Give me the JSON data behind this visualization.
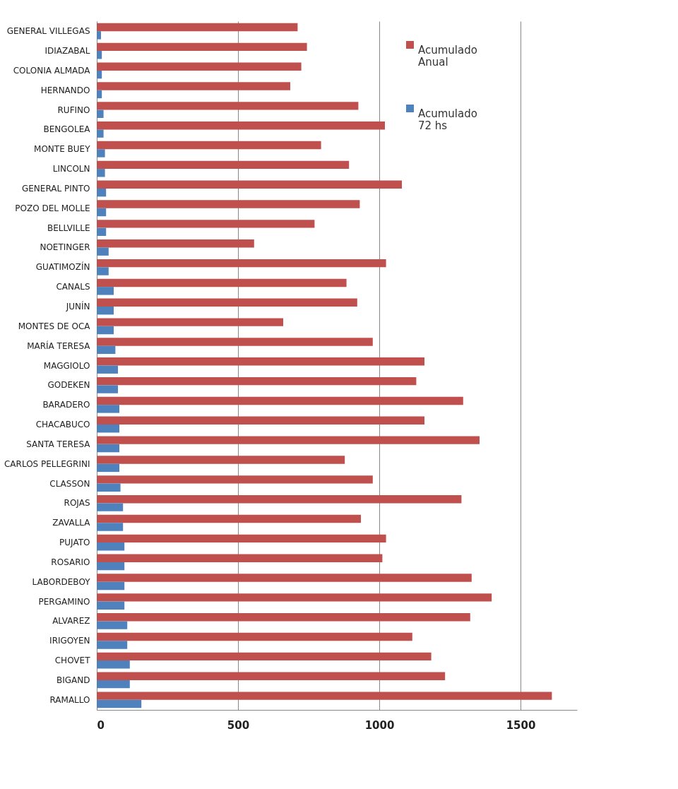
{
  "chart_data": {
    "type": "bar",
    "orientation": "horizontal",
    "categories": [
      "GENERAL VILLEGAS",
      "IDIAZABAL",
      "COLONIA ALMADA",
      "HERNANDO",
      "RUFINO",
      "BENGOLEA",
      "MONTE BUEY",
      "LINCOLN",
      "GENERAL PINTO",
      "POZO DEL MOLLE",
      "BELLVILLE",
      "NOETINGER",
      "GUATIMOZÍN",
      "CANALS",
      "JUNÍN",
      "MONTES DE OCA",
      "MARÍA TERESA",
      "MAGGIOLO",
      "GODEKEN",
      "BARADERO",
      "CHACABUCO",
      "SANTA TERESA",
      "CARLOS PELLEGRINI",
      "CLASSON",
      "ROJAS",
      "ZAVALLA",
      "PUJATO",
      "ROSARIO",
      "LABORDEBOY",
      "PERGAMINO",
      "ALVAREZ",
      "IRIGOYEN",
      "CHOVET",
      "BIGAND",
      "RAMALLO"
    ],
    "series": [
      {
        "name": "Acumulado Anual",
        "color": "#c0504d",
        "values": [
          711,
          744,
          724,
          685,
          926,
          1020,
          794,
          893,
          1080,
          931,
          771,
          557,
          1024,
          884,
          922,
          660,
          977,
          1160,
          1131,
          1297,
          1160,
          1355,
          878,
          977,
          1291,
          935,
          1024,
          1011,
          1327,
          1398,
          1322,
          1117,
          1184,
          1233,
          1611
        ]
      },
      {
        "name": "Acumulado 72 hs",
        "color": "#4f81bd",
        "values": [
          15,
          18,
          18,
          18,
          24,
          24,
          29,
          29,
          33,
          33,
          33,
          42,
          42,
          60,
          60,
          60,
          66,
          75,
          75,
          80,
          80,
          80,
          80,
          84,
          93,
          93,
          98,
          98,
          98,
          98,
          108,
          108,
          117,
          117,
          158
        ]
      }
    ],
    "xlim": [
      0,
      1700
    ],
    "xticks": [
      0,
      500,
      1000,
      1500
    ],
    "grid": "x",
    "legend": "top right"
  }
}
